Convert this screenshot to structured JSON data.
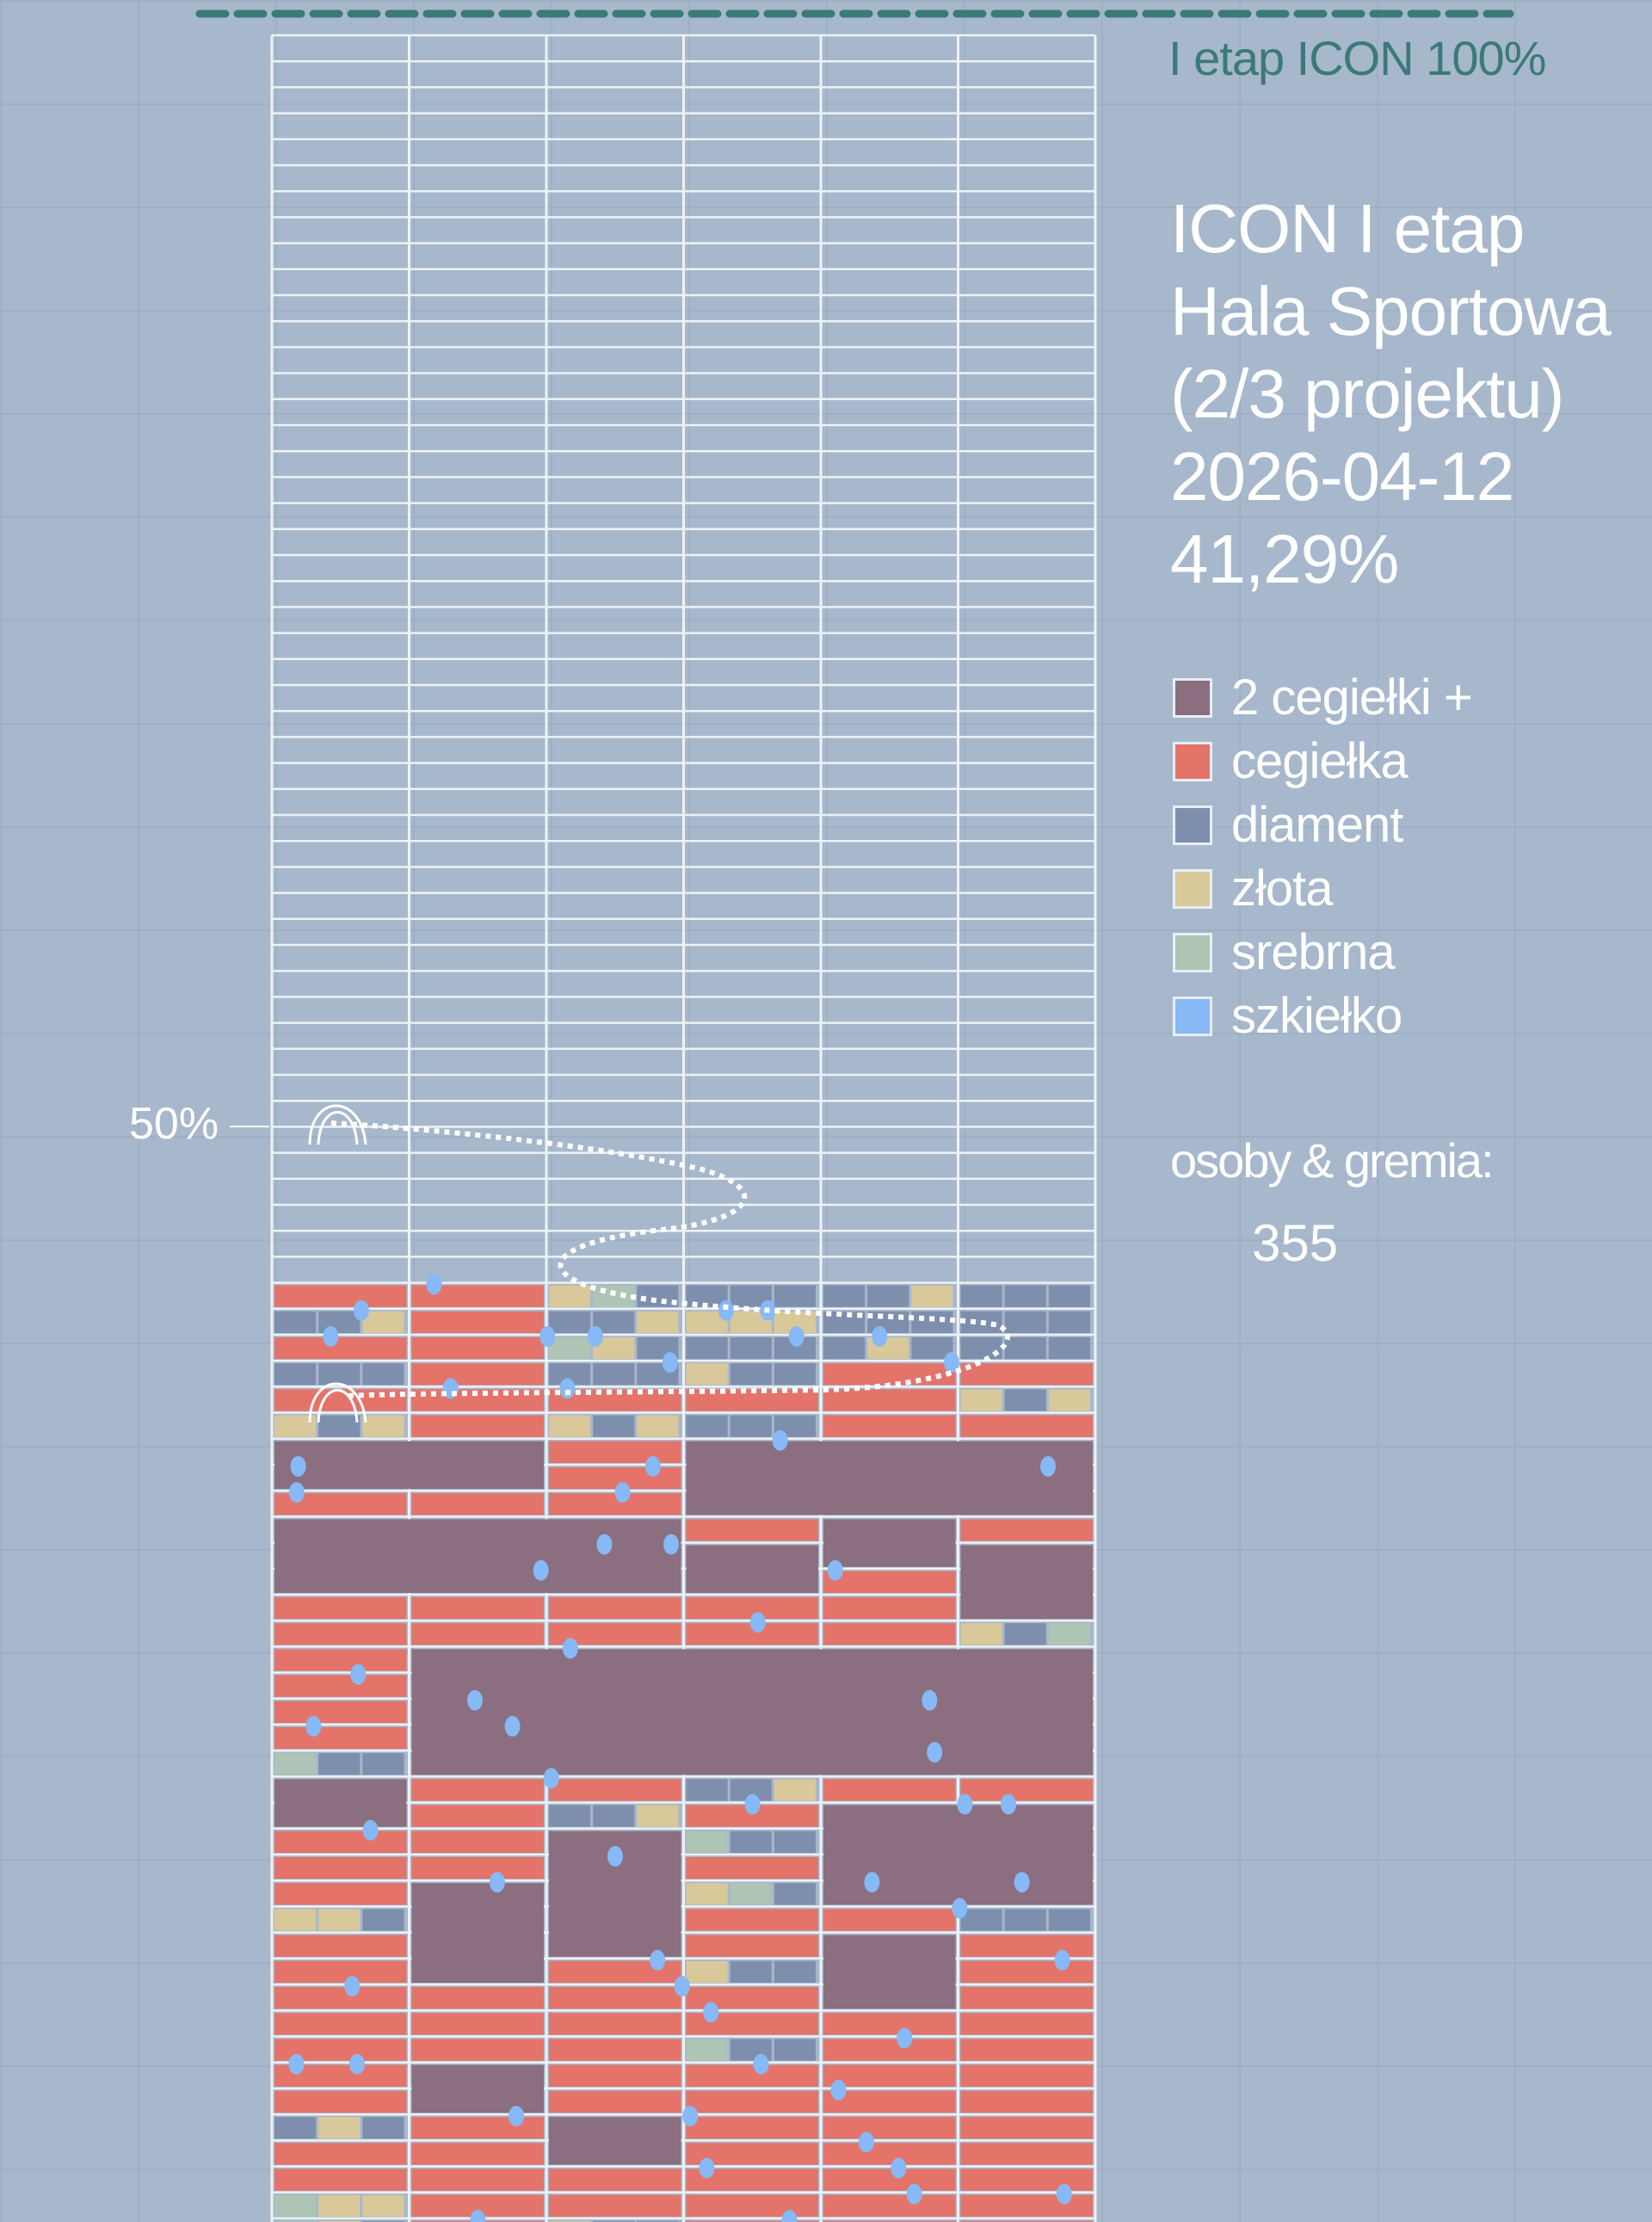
{
  "target": {
    "label": "I etap ICON 100%"
  },
  "title": {
    "lines": [
      "ICON I etap",
      "Hala Sportowa",
      "(2/3 projektu)",
      "2026-04-12",
      "41,29%"
    ]
  },
  "progress_percent": 41.29,
  "midline_label": "50%",
  "legend": [
    {
      "label": "2 cegiełki +",
      "color": "#8b6e80"
    },
    {
      "label": "cegiełka",
      "color": "#e4736a"
    },
    {
      "label": "diament",
      "color": "#7d8fad"
    },
    {
      "label": "złota",
      "color": "#d9c89a"
    },
    {
      "label": "srebrna",
      "color": "#aec4b4"
    },
    {
      "label": "szkiełko",
      "color": "#86b9f5"
    }
  ],
  "people": {
    "label": "osoby & gremia:",
    "count": "355"
  },
  "colors": {
    "teal": "#3b7a78",
    "background": "#a7b8cc",
    "grid": "#eef2f6"
  }
}
